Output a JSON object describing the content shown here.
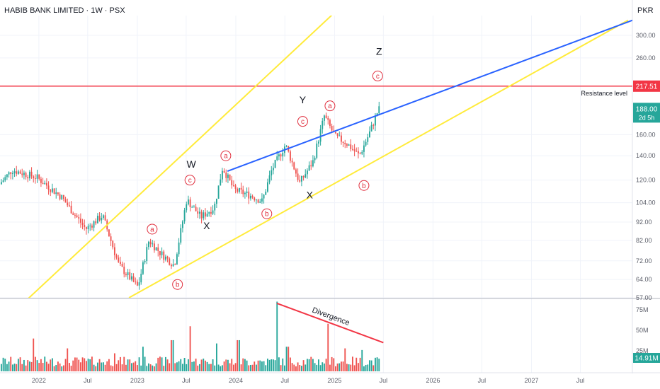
{
  "header": {
    "title": "HABIB BANK LIMITED · 1W · PSX",
    "currency": "PKR"
  },
  "colors": {
    "up": "#26a69a",
    "down": "#ef5350",
    "channel": "#ffeb3b",
    "trend": "#2962ff",
    "resistance": "#f23645",
    "label": "#e0303f"
  },
  "chart_data": {
    "type": "candlestick",
    "symbol": "HABIB BANK LIMITED",
    "interval": "1W",
    "exchange": "PSX",
    "y_scale": "log",
    "price_ticks": [
      300.0,
      260.0,
      217.51,
      188.0,
      160.0,
      140.0,
      120.0,
      104.0,
      92.0,
      82.0,
      72.0,
      64.0,
      57.0
    ],
    "ylim": [
      57,
      340
    ],
    "x_ticks": [
      "2022",
      "Jul",
      "2023",
      "Jul",
      "2024",
      "Jul",
      "2025",
      "Jul",
      "2026",
      "Jul",
      "2027",
      "Jul"
    ],
    "x_tick_dates": [
      "2022-01-01",
      "2022-07-01",
      "2023-01-01",
      "2023-07-01",
      "2024-01-01",
      "2024-07-01",
      "2025-01-01",
      "2025-07-01",
      "2026-01-01",
      "2026-07-01",
      "2027-01-01",
      "2027-07-01"
    ],
    "xlim": [
      "2021-08-10",
      "2028-01-10"
    ],
    "last_price": 188.0,
    "countdown": "2d 5h",
    "resistance": {
      "price": 217.51,
      "label": "Resistance level"
    },
    "price_points": [
      {
        "date": "2021-08-15",
        "price": 117
      },
      {
        "date": "2021-10-01",
        "price": 128
      },
      {
        "date": "2022-01-01",
        "price": 122
      },
      {
        "date": "2022-04-01",
        "price": 108
      },
      {
        "date": "2022-07-01",
        "price": 88
      },
      {
        "date": "2022-09-01",
        "price": 96
      },
      {
        "date": "2022-11-01",
        "price": 70
      },
      {
        "date": "2023-01-10",
        "price": 61
      },
      {
        "date": "2023-02-20",
        "price": 82
      },
      {
        "date": "2023-04-01",
        "price": 76
      },
      {
        "date": "2023-05-25",
        "price": 70
      },
      {
        "date": "2023-07-10",
        "price": 106
      },
      {
        "date": "2023-09-01",
        "price": 95
      },
      {
        "date": "2023-10-20",
        "price": 101
      },
      {
        "date": "2023-11-20",
        "price": 130
      },
      {
        "date": "2024-01-01",
        "price": 113
      },
      {
        "date": "2024-03-01",
        "price": 109
      },
      {
        "date": "2024-04-15",
        "price": 105
      },
      {
        "date": "2024-05-20",
        "price": 128
      },
      {
        "date": "2024-07-10",
        "price": 150
      },
      {
        "date": "2024-09-01",
        "price": 118
      },
      {
        "date": "2024-10-20",
        "price": 135
      },
      {
        "date": "2024-12-01",
        "price": 180
      },
      {
        "date": "2025-01-10",
        "price": 158
      },
      {
        "date": "2025-02-20",
        "price": 152
      },
      {
        "date": "2025-04-10",
        "price": 140
      },
      {
        "date": "2025-05-15",
        "price": 160
      },
      {
        "date": "2025-06-20",
        "price": 188
      }
    ],
    "channel_lines": [
      {
        "name": "upper",
        "from": {
          "date": "2021-08-10",
          "price": 48
        },
        "to": {
          "date": "2026-06-10",
          "price": 800
        }
      },
      {
        "name": "lower",
        "from": {
          "date": "2022-12-01",
          "price": 57
        },
        "to": {
          "date": "2027-12-25",
          "price": 330
        }
      }
    ],
    "trend_line": {
      "from": {
        "date": "2023-12-01",
        "price": 127
      },
      "to": {
        "date": "2028-01-10",
        "price": 330
      }
    },
    "wave_labels": [
      {
        "text": "W",
        "date": "2023-07-20",
        "price": 130
      },
      {
        "text": "X",
        "date": "2023-09-15",
        "price": 88
      },
      {
        "text": "Y",
        "date": "2024-09-05",
        "price": 195
      },
      {
        "text": "X",
        "date": "2024-10-01",
        "price": 107
      },
      {
        "text": "Z",
        "date": "2025-06-15",
        "price": 265
      }
    ],
    "sub_labels": [
      {
        "text": "a",
        "date": "2023-02-25",
        "price": 88
      },
      {
        "text": "b",
        "date": "2023-05-30",
        "price": 62
      },
      {
        "text": "c",
        "date": "2023-07-15",
        "price": 120
      },
      {
        "text": "a",
        "date": "2023-11-25",
        "price": 140
      },
      {
        "text": "b",
        "date": "2024-04-25",
        "price": 97
      },
      {
        "text": "c",
        "date": "2024-09-05",
        "price": 174
      },
      {
        "text": "a",
        "date": "2024-12-15",
        "price": 192
      },
      {
        "text": "b",
        "date": "2025-04-20",
        "price": 116
      },
      {
        "text": "c",
        "date": "2025-06-10",
        "price": 232
      }
    ],
    "volume": {
      "ticks": [
        "75M",
        "50M",
        "25M"
      ],
      "tick_values": [
        75,
        50,
        25
      ],
      "ylim": [
        0,
        88
      ],
      "last_volume": "14.91M",
      "unit": "M",
      "spikes": [
        {
          "date": "2021-12-10",
          "value": 40
        },
        {
          "date": "2022-04-15",
          "value": 28
        },
        {
          "date": "2022-10-10",
          "value": 22
        },
        {
          "date": "2023-01-20",
          "value": 30
        },
        {
          "date": "2023-05-10",
          "value": 38
        },
        {
          "date": "2023-07-14",
          "value": 55
        },
        {
          "date": "2023-10-20",
          "value": 34
        },
        {
          "date": "2024-01-10",
          "value": 38
        },
        {
          "date": "2024-05-31",
          "value": 85
        },
        {
          "date": "2024-07-10",
          "value": 30
        },
        {
          "date": "2024-12-06",
          "value": 58
        },
        {
          "date": "2025-02-10",
          "value": 28
        },
        {
          "date": "2025-04-15",
          "value": 26
        }
      ],
      "divergence": {
        "label": "Divergence",
        "from": {
          "date": "2024-06-01",
          "value": 83
        },
        "to": {
          "date": "2025-07-01",
          "value": 35
        }
      }
    }
  }
}
